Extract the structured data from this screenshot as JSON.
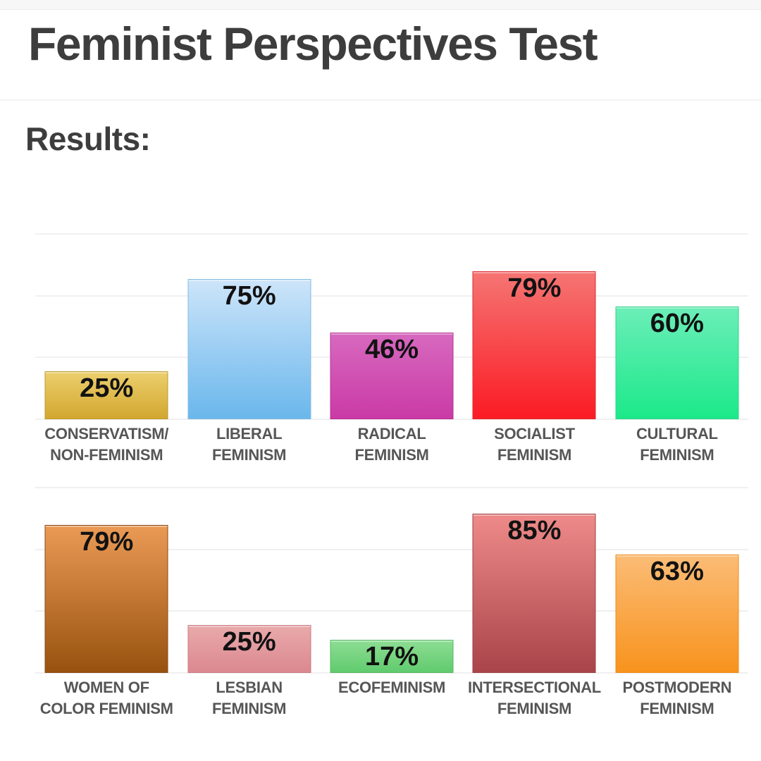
{
  "page": {
    "title": "Feminist Perspectives Test",
    "results_heading": "Results:"
  },
  "colors": {
    "title_text": "#3d3d3d",
    "category_text": "#565656",
    "value_text": "#121212",
    "gridline": "#f0f0f0",
    "top_strip": "#f7f7f8",
    "background": "#ffffff"
  },
  "chart_data": [
    {
      "type": "bar",
      "title": "",
      "xlabel": "",
      "ylabel": "",
      "ylim": [
        0,
        100
      ],
      "grid": true,
      "gridline_percents": [
        0,
        33.33,
        66.67,
        100
      ],
      "value_labels_inside_bars": true,
      "categories": [
        "CONSERVATISM/ NON-FEMINISM",
        "LIBERAL FEMINISM",
        "RADICAL FEMINISM",
        "SOCIALIST FEMINISM",
        "CULTURAL FEMINISM"
      ],
      "values": [
        25,
        75,
        46,
        79,
        60
      ],
      "bars": [
        {
          "category_lines": [
            "CONSERVATISM/",
            "NON-FEMINISM"
          ],
          "value": 25,
          "value_label": "25%",
          "color_top": "#eccf6d",
          "color_bottom": "#d2a72f",
          "border_color": "#bf982c"
        },
        {
          "category_lines": [
            "LIBERAL",
            "FEMINISM"
          ],
          "value": 75,
          "value_label": "75%",
          "color_top": "#cde5fa",
          "color_bottom": "#6ab7ec",
          "border_color": "#85bbe2"
        },
        {
          "category_lines": [
            "RADICAL",
            "FEMINISM"
          ],
          "value": 46,
          "value_label": "46%",
          "color_top": "#d769bf",
          "color_bottom": "#ca3aa6",
          "border_color": "#b5338f"
        },
        {
          "category_lines": [
            "SOCIALIST",
            "FEMINISM"
          ],
          "value": 79,
          "value_label": "79%",
          "color_top": "#f57573",
          "color_bottom": "#fb1b24",
          "border_color": "#dd2a2f"
        },
        {
          "category_lines": [
            "CULTURAL",
            "FEMINISM"
          ],
          "value": 60,
          "value_label": "60%",
          "color_top": "#6beeb8",
          "color_bottom": "#1ce98a",
          "border_color": "#31d489"
        }
      ]
    },
    {
      "type": "bar",
      "title": "",
      "xlabel": "",
      "ylabel": "",
      "ylim": [
        0,
        100
      ],
      "grid": true,
      "gridline_percents": [
        0,
        33.33,
        66.67,
        100
      ],
      "value_labels_inside_bars": true,
      "categories": [
        "WOMEN OF COLOR FEMINISM",
        "LESBIAN FEMINISM",
        "ECOFEMINISM",
        "INTERSECTIONAL FEMINISM",
        "POSTMODERN FEMINISM"
      ],
      "values": [
        79,
        25,
        17,
        85,
        63
      ],
      "bars": [
        {
          "category_lines": [
            "WOMEN OF",
            "COLOR FEMINISM"
          ],
          "value": 79,
          "value_label": "79%",
          "color_top": "#ea9a55",
          "color_bottom": "#98520f",
          "border_color": "#8a4a15"
        },
        {
          "category_lines": [
            "LESBIAN",
            "FEMINISM"
          ],
          "value": 25,
          "value_label": "25%",
          "color_top": "#e9aaaa",
          "color_bottom": "#db8890",
          "border_color": "#cb7b84"
        },
        {
          "category_lines": [
            "ECOFEMINISM"
          ],
          "value": 17,
          "value_label": "17%",
          "color_top": "#8edd93",
          "color_bottom": "#60cb6e",
          "border_color": "#57b964"
        },
        {
          "category_lines": [
            "INTERSECTIONAL",
            "FEMINISM"
          ],
          "value": 85,
          "value_label": "85%",
          "color_top": "#ee8a89",
          "color_bottom": "#a9454a",
          "border_color": "#9b4046"
        },
        {
          "category_lines": [
            "POSTMODERN",
            "FEMINISM"
          ],
          "value": 63,
          "value_label": "63%",
          "color_top": "#fbbc76",
          "color_bottom": "#f8931d",
          "border_color": "#ef8c17"
        }
      ]
    }
  ]
}
